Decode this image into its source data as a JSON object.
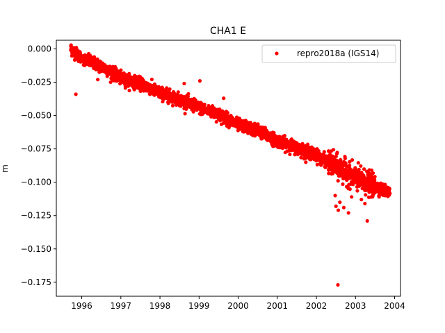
{
  "chart_data": {
    "type": "scatter",
    "title": "CHA1 E",
    "xlabel": "",
    "ylabel": "m",
    "xlim": [
      1995.35,
      2004.15
    ],
    "ylim": [
      -0.1855,
      0.0065
    ],
    "x_ticks": [
      1996,
      1997,
      1998,
      1999,
      2000,
      2001,
      2002,
      2003,
      2004
    ],
    "x_tick_labels": [
      "1996",
      "1997",
      "1998",
      "1999",
      "2000",
      "2001",
      "2002",
      "2003",
      "2004"
    ],
    "y_ticks": [
      0.0,
      -0.025,
      -0.05,
      -0.075,
      -0.1,
      -0.125,
      -0.15,
      -0.175
    ],
    "y_tick_labels": [
      "0.000",
      "−0.025",
      "−0.050",
      "−0.075",
      "−0.100",
      "−0.125",
      "−0.150",
      "−0.175"
    ],
    "legend": {
      "position": "top-right"
    },
    "colors": {
      "series": "#ff0000"
    },
    "series": [
      {
        "name": "repro2018a (IGS14)",
        "marker": "dot",
        "trend": [
          [
            1995.72,
            0.0
          ],
          [
            1996.0,
            -0.007
          ],
          [
            1996.5,
            -0.013
          ],
          [
            1997.0,
            -0.022
          ],
          [
            1997.5,
            -0.026
          ],
          [
            1998.0,
            -0.033
          ],
          [
            1998.5,
            -0.038
          ],
          [
            1999.0,
            -0.044
          ],
          [
            1999.5,
            -0.049
          ],
          [
            2000.0,
            -0.057
          ],
          [
            2000.5,
            -0.061
          ],
          [
            2001.0,
            -0.069
          ],
          [
            2001.5,
            -0.074
          ],
          [
            2002.0,
            -0.08
          ],
          [
            2002.5,
            -0.088
          ],
          [
            2003.0,
            -0.097
          ],
          [
            2003.5,
            -0.103
          ],
          [
            2003.88,
            -0.108
          ]
        ],
        "gaps": [
          [
            1995.98,
            1996.04
          ],
          [
            1999.15,
            1999.2
          ]
        ],
        "scatter": 0.0022,
        "outliers": [
          [
            1995.85,
            -0.034
          ],
          [
            1996.41,
            -0.023
          ],
          [
            1998.62,
            -0.026
          ],
          [
            1999.02,
            -0.024
          ],
          [
            1999.63,
            -0.037
          ],
          [
            2000.42,
            -0.063
          ],
          [
            2001.73,
            -0.082
          ],
          [
            2002.1,
            -0.086
          ],
          [
            2002.48,
            -0.11
          ],
          [
            2002.5,
            -0.118
          ],
          [
            2002.56,
            -0.121
          ],
          [
            2002.6,
            -0.115
          ],
          [
            2002.7,
            -0.119
          ],
          [
            2002.82,
            -0.123
          ],
          [
            2002.9,
            -0.111
          ],
          [
            2003.15,
            -0.113
          ],
          [
            2003.24,
            -0.116
          ],
          [
            2003.3,
            -0.129
          ],
          [
            2003.36,
            -0.099
          ],
          [
            2002.55,
            -0.177
          ]
        ]
      }
    ]
  }
}
